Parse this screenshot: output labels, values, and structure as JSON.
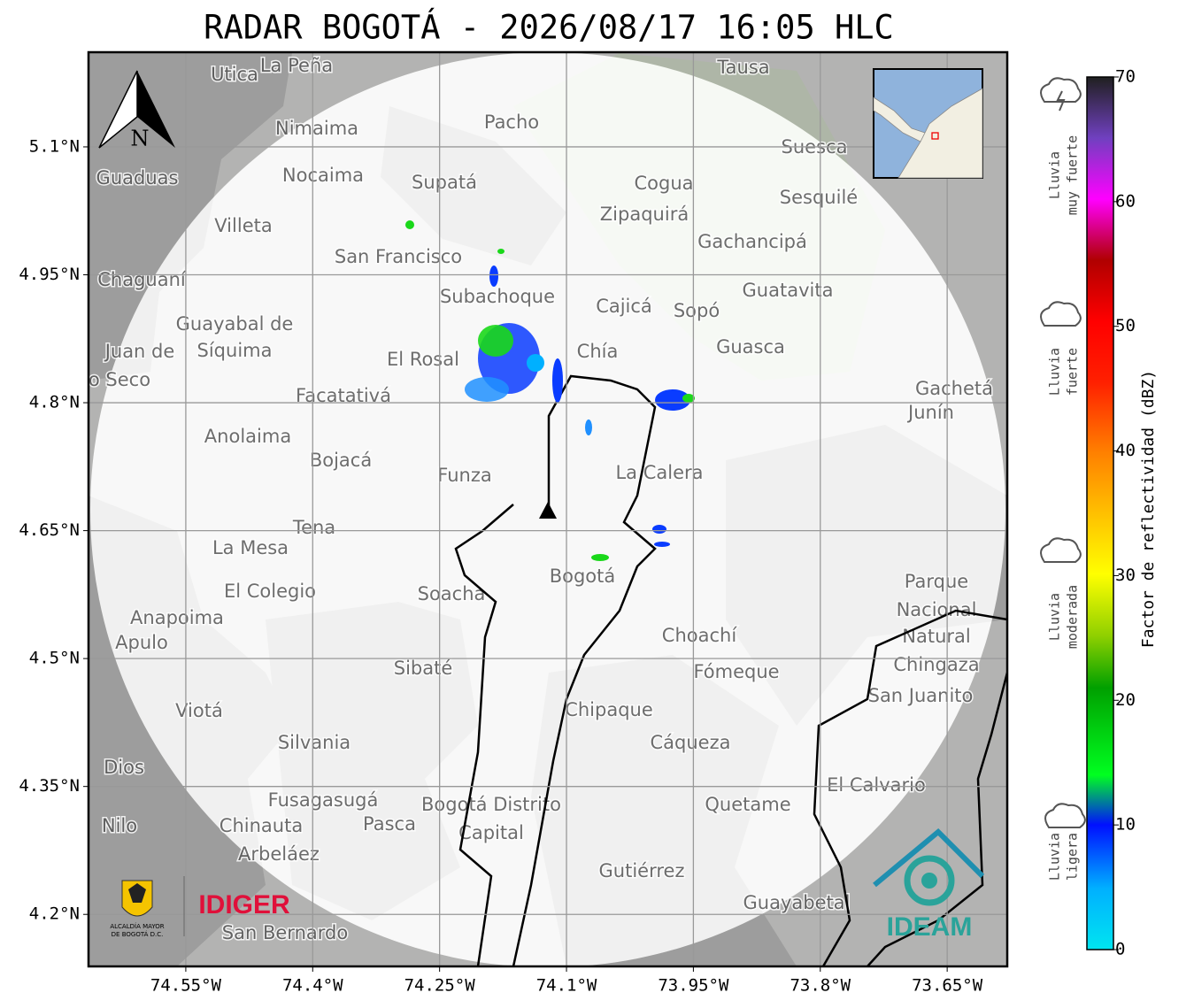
{
  "title": "RADAR BOGOTÁ - 2026/08/17 16:05 HLC",
  "map": {
    "lonlim": [
      -74.665,
      -73.579
    ],
    "latlim": [
      4.139,
      5.211
    ],
    "grid": true,
    "lon_ticks": [
      {
        "value": -74.55,
        "label": "74.55°W"
      },
      {
        "value": -74.4,
        "label": "74.4°W"
      },
      {
        "value": -74.25,
        "label": "74.25°W"
      },
      {
        "value": -74.1,
        "label": "74.1°W"
      },
      {
        "value": -73.95,
        "label": "73.95°W"
      },
      {
        "value": -73.8,
        "label": "73.8°W"
      },
      {
        "value": -73.65,
        "label": "73.65°W"
      }
    ],
    "lat_ticks": [
      {
        "value": 5.1,
        "label": "5.1°N"
      },
      {
        "value": 4.95,
        "label": "4.95°N"
      },
      {
        "value": 4.8,
        "label": "4.8°N"
      },
      {
        "value": 4.65,
        "label": "4.65°N"
      },
      {
        "value": 4.5,
        "label": "4.5°N"
      },
      {
        "value": 4.35,
        "label": "4.35°N"
      },
      {
        "value": 4.2,
        "label": "4.2°N"
      }
    ],
    "north": "N",
    "places": [
      "Utica",
      "La Peña",
      "Tausa",
      "Pacho",
      "Nimaima",
      "Suesca",
      "Guaduas",
      "Nocaima",
      "Supatá",
      "Cogua",
      "Sesquilé",
      "Zipaquirá",
      "Villeta",
      "Gachancipá",
      "San Francisco",
      "Chaguaní",
      "Guatavita",
      "Subachoque",
      "Cajicá",
      "Sopó",
      "Guayabal de",
      "Síquima",
      "Chía",
      "Guasca",
      "El Rosal",
      "Juan de",
      "o Seco",
      "Facatativá",
      "Gachetá",
      "Junín",
      "Anolaima",
      "Bojacá",
      "Funza",
      "La Calera",
      "Tena",
      "La Mesa",
      "Bogotá",
      "Parque",
      "Nacional",
      "Natural",
      "Chingaza",
      "El Colegio",
      "Soacha",
      "Anapoima",
      "Apulo",
      "Choachí",
      "Sibaté",
      "Fómeque",
      "San Juanito",
      "Viotá",
      "Chipaque",
      "Silvania",
      "Cáqueza",
      "Dios",
      "El Calvario",
      "Fusagasugá",
      "Bogotá Distrito",
      "Capital",
      "Quetame",
      "Nilo",
      "Chinauta",
      "Pasca",
      "Arbeláez",
      "Gutiérrez",
      "Guayabetal",
      "San Bernardo"
    ],
    "logos": {
      "alcaldia": [
        "ALCALDÍA MAYOR",
        "DE BOGOTÁ D.C."
      ],
      "idiger": "IDIGER",
      "ideam": "IDEAM"
    }
  },
  "colorbar": {
    "label": "Factor de reflectividad (dBZ)",
    "lim": [
      0,
      70
    ],
    "ticks": [
      0,
      10,
      20,
      30,
      40,
      50,
      60,
      70
    ]
  },
  "rain_legend": [
    [
      "Lluvia",
      "muy fuerte"
    ],
    [
      "Lluvia",
      "fuerte"
    ],
    [
      "Lluvia",
      "moderada"
    ],
    [
      "Lluvia",
      "ligera"
    ]
  ]
}
